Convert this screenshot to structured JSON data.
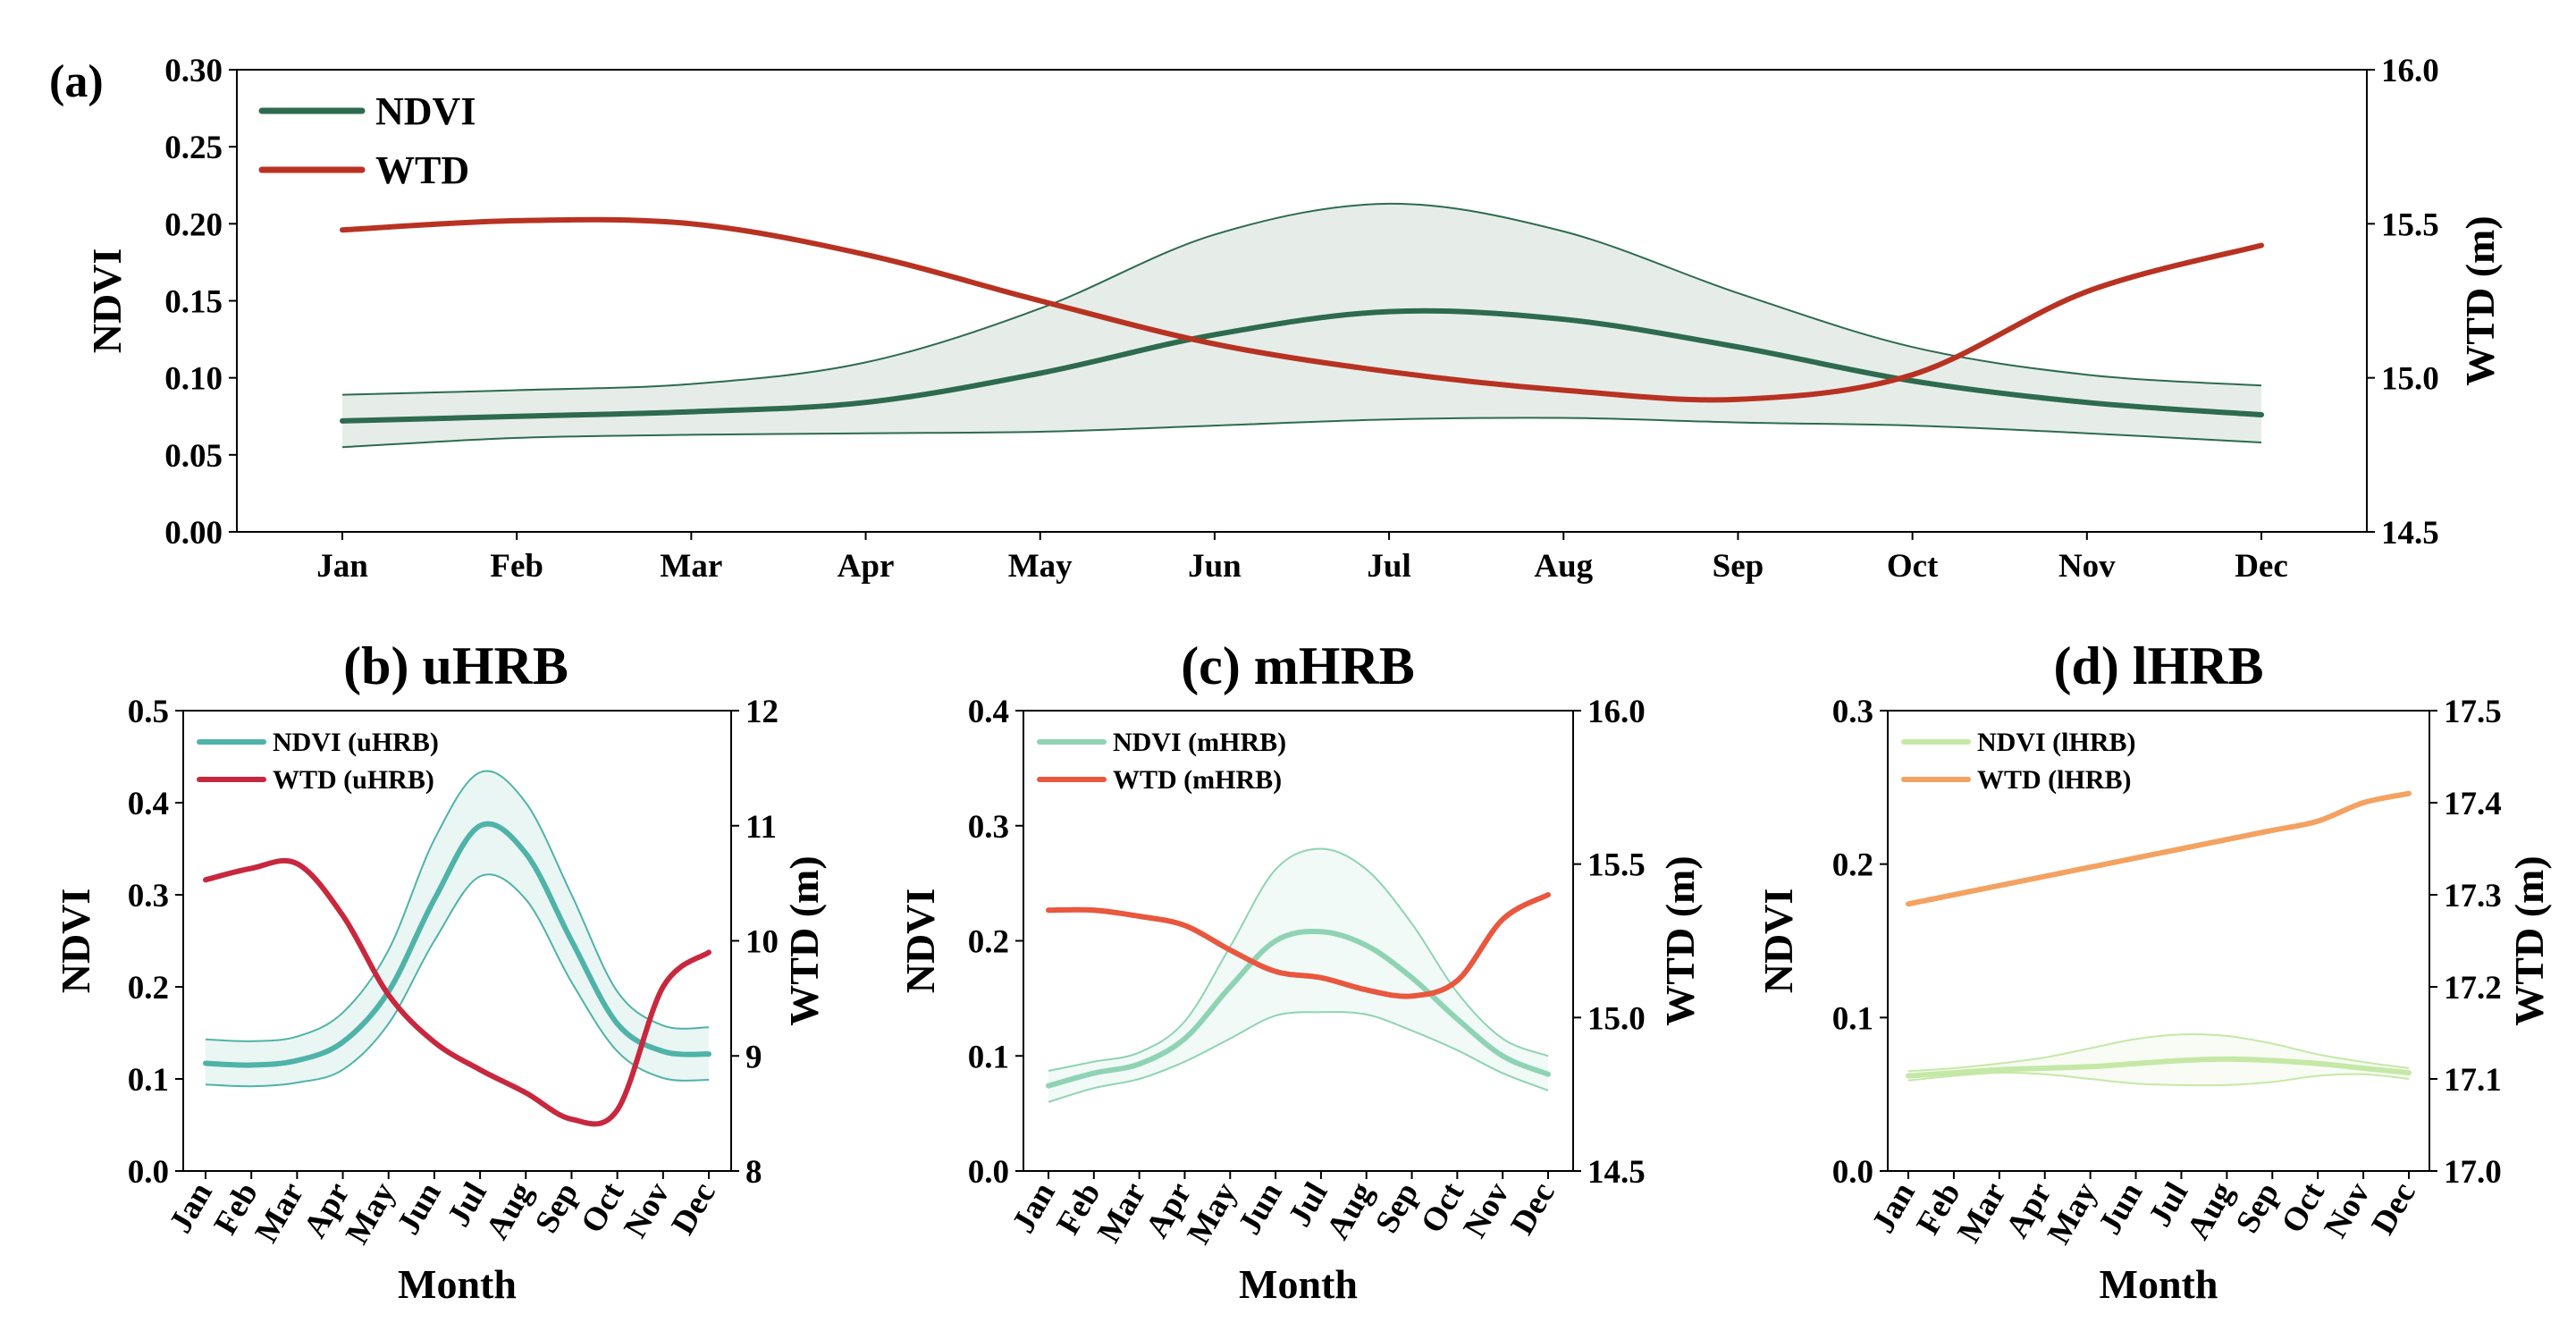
{
  "chart_data": [
    {
      "id": "a",
      "panel_label": "(a)",
      "type": "line",
      "title": "",
      "xlabel": "",
      "ylabel": "NDVI",
      "y2label": "WTD (m)",
      "categories": [
        "Jan",
        "Feb",
        "Mar",
        "Apr",
        "May",
        "Jun",
        "Jul",
        "Aug",
        "Sep",
        "Oct",
        "Nov",
        "Dec"
      ],
      "ylim": [
        0,
        0.3
      ],
      "yticks": [
        "0.00",
        "0.05",
        "0.10",
        "0.15",
        "0.20",
        "0.25",
        "0.30"
      ],
      "y2lim": [
        14.5,
        16.0
      ],
      "y2ticks": [
        "14.5",
        "15.0",
        "15.5",
        "16.0"
      ],
      "legend_position": "top-left",
      "series": [
        {
          "name": "NDVI",
          "axis": "left",
          "color": "#2e6b4e",
          "band_fill": "#2e6b4e",
          "values": [
            0.072,
            0.075,
            0.078,
            0.084,
            0.103,
            0.128,
            0.143,
            0.138,
            0.12,
            0.098,
            0.084,
            0.076
          ],
          "band_upper": [
            0.089,
            0.092,
            0.096,
            0.11,
            0.145,
            0.193,
            0.213,
            0.195,
            0.155,
            0.12,
            0.102,
            0.095
          ],
          "band_lower": [
            0.055,
            0.061,
            0.063,
            0.064,
            0.065,
            0.069,
            0.073,
            0.074,
            0.071,
            0.069,
            0.064,
            0.058
          ]
        },
        {
          "name": "WTD",
          "axis": "right",
          "color": "#b83222",
          "values": [
            15.48,
            15.51,
            15.5,
            15.4,
            15.25,
            15.11,
            15.02,
            14.96,
            14.93,
            15.01,
            15.28,
            15.43
          ]
        }
      ]
    },
    {
      "id": "b",
      "title": "(b) uHRB",
      "type": "line",
      "xlabel": "Month",
      "ylabel": "NDVI",
      "y2label": "WTD (m)",
      "categories": [
        "Jan",
        "Feb",
        "Mar",
        "Apr",
        "May",
        "Jun",
        "Jul",
        "Aug",
        "Sep",
        "Oct",
        "Nov",
        "Dec"
      ],
      "ylim": [
        0,
        0.5
      ],
      "yticks": [
        "0.0",
        "0.1",
        "0.2",
        "0.3",
        "0.4",
        "0.5"
      ],
      "y2lim": [
        8,
        12
      ],
      "y2ticks": [
        "8",
        "9",
        "10",
        "11",
        "12"
      ],
      "legend_position": "top-left",
      "series": [
        {
          "name": "NDVI (uHRB)",
          "axis": "left",
          "color": "#4fb3a8",
          "band_fill": "#4fb3a8",
          "values": [
            0.117,
            0.115,
            0.12,
            0.14,
            0.195,
            0.295,
            0.375,
            0.345,
            0.25,
            0.16,
            0.13,
            0.127
          ],
          "band_upper": [
            0.143,
            0.141,
            0.146,
            0.172,
            0.24,
            0.36,
            0.433,
            0.4,
            0.3,
            0.195,
            0.158,
            0.156
          ],
          "band_lower": [
            0.094,
            0.092,
            0.096,
            0.11,
            0.16,
            0.25,
            0.32,
            0.295,
            0.205,
            0.13,
            0.101,
            0.099
          ]
        },
        {
          "name": "WTD (uHRB)",
          "axis": "right",
          "color": "#c8283e",
          "values": [
            10.53,
            10.63,
            10.67,
            10.22,
            9.53,
            9.12,
            8.88,
            8.68,
            8.45,
            8.53,
            9.6,
            9.9
          ]
        }
      ]
    },
    {
      "id": "c",
      "title": "(c) mHRB",
      "type": "line",
      "xlabel": "Month",
      "ylabel": "NDVI",
      "y2label": "WTD (m)",
      "categories": [
        "Jan",
        "Feb",
        "Mar",
        "Apr",
        "May",
        "Jun",
        "Jul",
        "Aug",
        "Sep",
        "Oct",
        "Nov",
        "Dec"
      ],
      "ylim": [
        0,
        0.4
      ],
      "yticks": [
        "0.0",
        "0.1",
        "0.2",
        "0.3",
        "0.4"
      ],
      "y2lim": [
        14.5,
        16.0
      ],
      "y2ticks": [
        "14.5",
        "15.0",
        "15.5",
        "16.0"
      ],
      "legend_position": "top-left",
      "series": [
        {
          "name": "NDVI (mHRB)",
          "axis": "left",
          "color": "#8fd3b4",
          "band_fill": "#8fd3b4",
          "values": [
            0.074,
            0.085,
            0.093,
            0.115,
            0.16,
            0.2,
            0.208,
            0.196,
            0.168,
            0.132,
            0.1,
            0.084
          ],
          "band_upper": [
            0.087,
            0.095,
            0.103,
            0.13,
            0.195,
            0.262,
            0.28,
            0.262,
            0.215,
            0.155,
            0.115,
            0.1
          ],
          "band_lower": [
            0.06,
            0.072,
            0.08,
            0.095,
            0.115,
            0.135,
            0.138,
            0.136,
            0.122,
            0.105,
            0.085,
            0.07
          ]
        },
        {
          "name": "WTD (mHRB)",
          "axis": "right",
          "color": "#e8573e",
          "values": [
            15.35,
            15.35,
            15.33,
            15.3,
            15.22,
            15.15,
            15.13,
            15.09,
            15.07,
            15.12,
            15.32,
            15.4
          ]
        }
      ]
    },
    {
      "id": "d",
      "title": "(d) lHRB",
      "type": "line",
      "xlabel": "Month",
      "ylabel": "NDVI",
      "y2label": "WTD (m)",
      "categories": [
        "Jan",
        "Feb",
        "Mar",
        "Apr",
        "May",
        "Jun",
        "Jul",
        "Aug",
        "Sep",
        "Oct",
        "Nov",
        "Dec"
      ],
      "ylim": [
        0,
        0.3
      ],
      "yticks": [
        "0.0",
        "0.1",
        "0.2",
        "0.3"
      ],
      "y2lim": [
        17.0,
        17.5
      ],
      "y2ticks": [
        "17.0",
        "17.1",
        "17.2",
        "17.3",
        "17.4",
        "17.5"
      ],
      "legend_position": "top-left",
      "series": [
        {
          "name": "NDVI (lHRB)",
          "axis": "left",
          "color": "#c5e8a7",
          "band_fill": "#c5e8a7",
          "values": [
            0.062,
            0.064,
            0.066,
            0.067,
            0.068,
            0.07,
            0.072,
            0.073,
            0.072,
            0.07,
            0.067,
            0.064
          ],
          "band_upper": [
            0.065,
            0.067,
            0.07,
            0.074,
            0.08,
            0.086,
            0.089,
            0.088,
            0.083,
            0.076,
            0.071,
            0.067
          ],
          "band_lower": [
            0.059,
            0.062,
            0.064,
            0.063,
            0.06,
            0.057,
            0.056,
            0.056,
            0.058,
            0.062,
            0.063,
            0.06
          ]
        },
        {
          "name": "WTD (lHRB)",
          "axis": "right",
          "color": "#f4a261",
          "values": [
            17.29,
            17.3,
            17.31,
            17.32,
            17.33,
            17.34,
            17.35,
            17.36,
            17.37,
            17.38,
            17.4,
            17.41
          ]
        }
      ]
    }
  ]
}
